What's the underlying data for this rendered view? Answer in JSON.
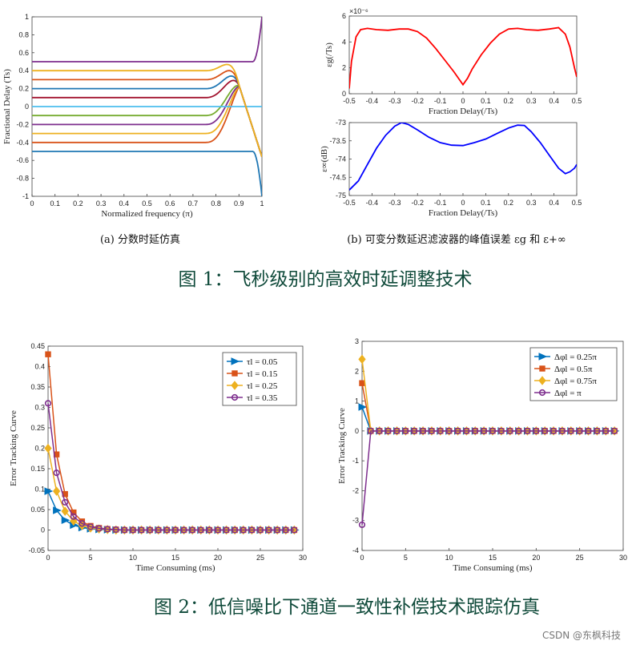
{
  "figure1": {
    "caption": "图 1：飞秒级别的高效时延调整技术",
    "caption_a": "(a) 分数时延仿真",
    "caption_b": "(b) 可变分数延迟滤波器的峰值误差 εg 和 ε+∞"
  },
  "figure2": {
    "caption": "图 2：低信噪比下通道一致性补偿技术跟踪仿真"
  },
  "watermark": "CSDN @东枫科技",
  "chart_data": [
    {
      "id": "fractional-delay",
      "type": "line",
      "xlabel": "Normalized frequency (π)",
      "ylabel": "Fractional Delay (Ts)",
      "xlim": [
        0,
        1
      ],
      "ylim": [
        -1,
        1
      ],
      "xticks": [
        "0",
        "0.1",
        "0.2",
        "0.3",
        "0.4",
        "0.5",
        "0.6",
        "0.7",
        "0.8",
        "0.9",
        "1"
      ],
      "yticks": [
        "-1",
        "-0.8",
        "-0.6",
        "-0.4",
        "-0.2",
        "0",
        "0.2",
        "0.4",
        "0.6",
        "0.8",
        "1"
      ],
      "series": [
        {
          "level": -0.5,
          "color": "#1f77b4"
        },
        {
          "level": -0.4,
          "color": "#d95319"
        },
        {
          "level": -0.3,
          "color": "#edb120"
        },
        {
          "level": -0.2,
          "color": "#7e2f8e"
        },
        {
          "level": -0.1,
          "color": "#77ac30"
        },
        {
          "level": 0.0,
          "color": "#4dbeee"
        },
        {
          "level": 0.1,
          "color": "#a2142f"
        },
        {
          "level": 0.2,
          "color": "#1f77b4"
        },
        {
          "level": 0.3,
          "color": "#d95319"
        },
        {
          "level": 0.4,
          "color": "#edb120"
        },
        {
          "level": 0.5,
          "color": "#7e2f8e"
        }
      ]
    },
    {
      "id": "peak-error-g",
      "type": "line",
      "xlabel": "Fraction Delay(/Ts)",
      "ylabel": "εg(/Ts)",
      "exponent": "×10⁻⁶",
      "xlim": [
        -0.5,
        0.5
      ],
      "ylim": [
        0,
        6
      ],
      "xticks": [
        "-0.5",
        "-0.4",
        "-0.3",
        "-0.2",
        "-0.1",
        "0",
        "0.1",
        "0.2",
        "0.3",
        "0.4",
        "0.5"
      ],
      "yticks": [
        "0",
        "2",
        "4",
        "6"
      ],
      "color": "#ff0000",
      "x": [
        -0.5,
        -0.49,
        -0.47,
        -0.45,
        -0.42,
        -0.38,
        -0.33,
        -0.28,
        -0.24,
        -0.2,
        -0.16,
        -0.12,
        -0.08,
        -0.04,
        -0.02,
        0,
        0.02,
        0.04,
        0.08,
        0.12,
        0.16,
        0.2,
        0.24,
        0.28,
        0.33,
        0.38,
        0.42,
        0.45,
        0.47,
        0.49,
        0.5
      ],
      "y": [
        0.4,
        2.5,
        4.4,
        4.95,
        5.05,
        4.95,
        4.9,
        5.0,
        5.0,
        4.8,
        4.3,
        3.5,
        2.6,
        1.7,
        1.2,
        0.7,
        1.2,
        1.9,
        3.0,
        3.9,
        4.6,
        5.0,
        5.05,
        4.95,
        4.9,
        5.0,
        5.1,
        4.6,
        3.6,
        2.0,
        1.3
      ]
    },
    {
      "id": "peak-error-inf",
      "type": "line",
      "xlabel": "Fraction Delay(/Ts)",
      "ylabel": "ε∞(dB)",
      "xlim": [
        -0.5,
        0.5
      ],
      "ylim": [
        -75,
        -73
      ],
      "xticks": [
        "-0.5",
        "-0.4",
        "-0.3",
        "-0.2",
        "-0.1",
        "0",
        "0.1",
        "0.2",
        "0.3",
        "0.4",
        "0.5"
      ],
      "yticks": [
        "-73",
        "-73.5",
        "-74",
        "-74.5",
        "-75"
      ],
      "color": "#0000ff",
      "x": [
        -0.5,
        -0.46,
        -0.42,
        -0.38,
        -0.34,
        -0.3,
        -0.27,
        -0.24,
        -0.2,
        -0.15,
        -0.1,
        -0.05,
        0,
        0.05,
        0.1,
        0.15,
        0.2,
        0.24,
        0.27,
        0.3,
        0.34,
        0.38,
        0.42,
        0.45,
        0.47,
        0.49,
        0.5
      ],
      "y": [
        -74.85,
        -74.6,
        -74.15,
        -73.7,
        -73.35,
        -73.1,
        -73.0,
        -73.05,
        -73.2,
        -73.4,
        -73.55,
        -73.62,
        -73.63,
        -73.55,
        -73.45,
        -73.3,
        -73.15,
        -73.07,
        -73.08,
        -73.25,
        -73.55,
        -73.9,
        -74.25,
        -74.4,
        -74.35,
        -74.25,
        -74.15
      ]
    },
    {
      "id": "tracking-tau",
      "type": "line",
      "xlabel": "Time Consuming (ms)",
      "ylabel": "Error Tracking Curve",
      "xlim": [
        0,
        30
      ],
      "ylim": [
        -0.05,
        0.45
      ],
      "xticks": [
        "0",
        "5",
        "10",
        "15",
        "20",
        "25",
        "30"
      ],
      "yticks": [
        "-0.05",
        "0",
        "0.05",
        "0.1",
        "0.15",
        "0.2",
        "0.25",
        "0.3",
        "0.35",
        "0.4",
        "0.45"
      ],
      "legend_position": "top-right",
      "series": [
        {
          "name": "τl = 0.05",
          "color": "#0072bd",
          "marker": "triangle",
          "values": [
            0.095,
            0.048,
            0.024,
            0.012,
            0.006,
            0.003,
            0.0015,
            0.0008,
            0,
            0,
            0,
            0,
            0,
            0,
            0,
            0,
            0,
            0,
            0,
            0,
            0,
            0,
            0,
            0,
            0,
            0,
            0,
            0,
            0,
            0
          ]
        },
        {
          "name": "τl = 0.15",
          "color": "#d95319",
          "marker": "square",
          "values": [
            0.43,
            0.185,
            0.088,
            0.043,
            0.021,
            0.01,
            0.005,
            0.0025,
            0.0012,
            0,
            0,
            0,
            0,
            0,
            0,
            0,
            0,
            0,
            0,
            0,
            0,
            0,
            0,
            0,
            0,
            0,
            0,
            0,
            0,
            0
          ]
        },
        {
          "name": "τl = 0.25",
          "color": "#edb120",
          "marker": "diamond",
          "values": [
            0.2,
            0.095,
            0.046,
            0.022,
            0.011,
            0.005,
            0.0025,
            0.0012,
            0,
            0,
            0,
            0,
            0,
            0,
            0,
            0,
            0,
            0,
            0,
            0,
            0,
            0,
            0,
            0,
            0,
            0,
            0,
            0,
            0,
            0
          ]
        },
        {
          "name": "τl = 0.35",
          "color": "#7e2f8e",
          "marker": "circle",
          "values": [
            0.31,
            0.14,
            0.068,
            0.033,
            0.016,
            0.008,
            0.004,
            0.002,
            0.001,
            0,
            0,
            0,
            0,
            0,
            0,
            0,
            0,
            0,
            0,
            0,
            0,
            0,
            0,
            0,
            0,
            0,
            0,
            0,
            0,
            0
          ]
        }
      ]
    },
    {
      "id": "tracking-phi",
      "type": "line",
      "xlabel": "Time Consuming (ms)",
      "ylabel": "Error Tracking Curve",
      "xlim": [
        0,
        30
      ],
      "ylim": [
        -4,
        3
      ],
      "xticks": [
        "0",
        "5",
        "10",
        "15",
        "20",
        "25",
        "30"
      ],
      "yticks": [
        "-4",
        "-3",
        "-2",
        "-1",
        "0",
        "1",
        "2",
        "3"
      ],
      "legend_position": "top-right",
      "series": [
        {
          "name": "Δφl = 0.25π",
          "color": "#0072bd",
          "marker": "triangle",
          "values": [
            0.8,
            0,
            0,
            0,
            0,
            0,
            0,
            0,
            0,
            0,
            0,
            0,
            0,
            0,
            0,
            0,
            0,
            0,
            0,
            0,
            0,
            0,
            0,
            0,
            0,
            0,
            0,
            0,
            0,
            0
          ]
        },
        {
          "name": "Δφl = 0.5π",
          "color": "#d95319",
          "marker": "square",
          "values": [
            1.6,
            0,
            0,
            0,
            0,
            0,
            0,
            0,
            0,
            0,
            0,
            0,
            0,
            0,
            0,
            0,
            0,
            0,
            0,
            0,
            0,
            0,
            0,
            0,
            0,
            0,
            0,
            0,
            0,
            0
          ]
        },
        {
          "name": "Δφl = 0.75π",
          "color": "#edb120",
          "marker": "diamond",
          "values": [
            2.4,
            0,
            0,
            0,
            0,
            0,
            0,
            0,
            0,
            0,
            0,
            0,
            0,
            0,
            0,
            0,
            0,
            0,
            0,
            0,
            0,
            0,
            0,
            0,
            0,
            0,
            0,
            0,
            0,
            0
          ]
        },
        {
          "name": "Δφl = π",
          "color": "#7e2f8e",
          "marker": "circle",
          "values": [
            -3.14,
            0,
            0,
            0,
            0,
            0,
            0,
            0,
            0,
            0,
            0,
            0,
            0,
            0,
            0,
            0,
            0,
            0,
            0,
            0,
            0,
            0,
            0,
            0,
            0,
            0,
            0,
            0,
            0,
            0
          ]
        }
      ]
    }
  ]
}
